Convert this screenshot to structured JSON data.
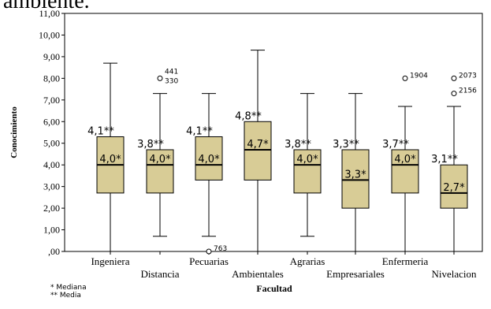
{
  "header_fragment": "ambiente.",
  "footnotes": [
    "* Mediana",
    "** Media"
  ],
  "colors": {
    "box_fill": "#d8cc96",
    "stroke": "#000000",
    "plot_border": "#000000"
  },
  "chart_data": {
    "type": "box",
    "xlabel": "Facultad",
    "ylabel": "Conocimiento",
    "ylim": [
      0,
      11
    ],
    "y_ticks": [
      "11,00",
      "10,00",
      "9,00",
      "8,00",
      "7,00",
      "6,00",
      "5,00",
      "4,00",
      "3,00",
      "2,00",
      "1,00",
      ",00"
    ],
    "grid": false,
    "categories": [
      "Ingeniera",
      "Distancia",
      "Pecuarias",
      "Ambientales",
      "Agrarias",
      "Empresariales",
      "Enfermeria",
      "Nivelacion"
    ],
    "boxes": [
      {
        "category": "Ingeniera",
        "min": 0.0,
        "q1": 2.7,
        "median": 4.0,
        "q3": 5.3,
        "max": 8.7,
        "median_label": "4,0*",
        "mean_label": "4,1**",
        "outliers": []
      },
      {
        "category": "Distancia",
        "min": 0.7,
        "q1": 2.7,
        "median": 4.0,
        "q3": 4.7,
        "max": 7.3,
        "median_label": "4,0*",
        "mean_label": "3,8**",
        "outliers": [
          {
            "value": 8.0,
            "ids": [
              "441",
              "330"
            ]
          }
        ]
      },
      {
        "category": "Pecuarias",
        "min": 0.7,
        "q1": 3.3,
        "median": 4.0,
        "q3": 5.3,
        "max": 7.3,
        "median_label": "4,0*",
        "mean_label": "4,1**",
        "outliers": [
          {
            "value": 0.0,
            "ids": [
              "763"
            ]
          }
        ]
      },
      {
        "category": "Ambientales",
        "min": 0.0,
        "q1": 3.3,
        "median": 4.7,
        "q3": 6.0,
        "max": 9.3,
        "median_label": "4,7*",
        "mean_label": "4,8**",
        "outliers": []
      },
      {
        "category": "Agrarias",
        "min": 0.7,
        "q1": 2.7,
        "median": 4.0,
        "q3": 4.7,
        "max": 7.3,
        "median_label": "4,0*",
        "mean_label": "3,8**",
        "outliers": []
      },
      {
        "category": "Empresariales",
        "min": 0.0,
        "q1": 2.0,
        "median": 3.3,
        "q3": 4.7,
        "max": 7.3,
        "median_label": "3,3*",
        "mean_label": "3,3**",
        "outliers": []
      },
      {
        "category": "Enfermeria",
        "min": 0.0,
        "q1": 2.7,
        "median": 4.0,
        "q3": 4.7,
        "max": 6.7,
        "median_label": "4,0*",
        "mean_label": "3,7**",
        "outliers": [
          {
            "value": 8.0,
            "ids": [
              "1904"
            ]
          }
        ]
      },
      {
        "category": "Nivelacion",
        "min": 0.0,
        "q1": 2.0,
        "median": 2.7,
        "q3": 4.0,
        "max": 6.7,
        "median_label": "2,7*",
        "mean_label": "3,1**",
        "outliers": [
          {
            "value": 8.0,
            "ids": [
              "2073"
            ]
          },
          {
            "value": 7.3,
            "ids": [
              "2156"
            ]
          }
        ]
      }
    ]
  }
}
